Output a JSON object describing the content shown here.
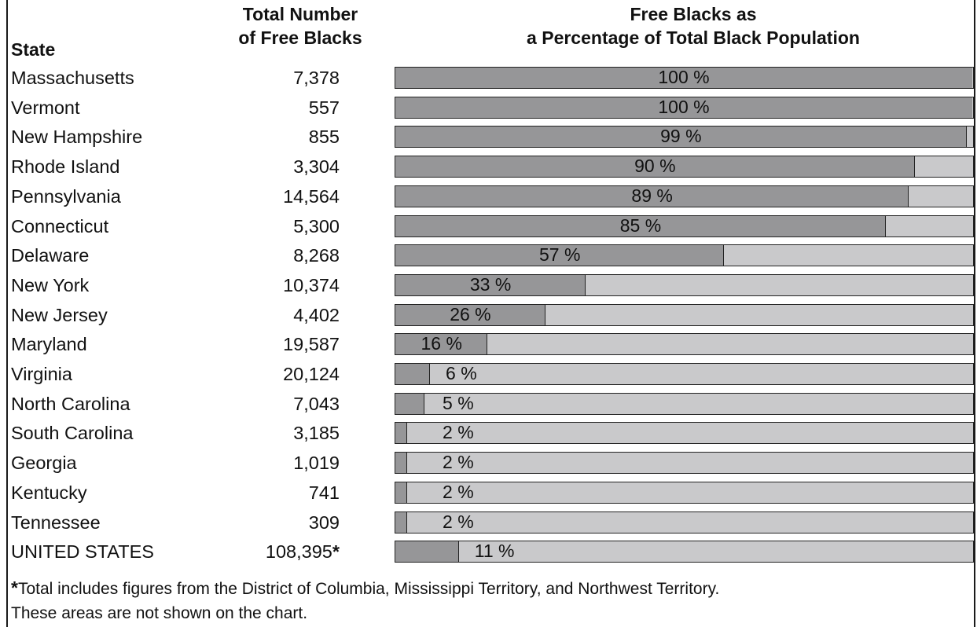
{
  "headers": {
    "state": "State",
    "total_line1": "Total Number",
    "total_line2": "of Free Blacks",
    "pct_line1": "Free Blacks as",
    "pct_line2": "a Percentage of Total Black Population"
  },
  "chart_data": {
    "type": "bar",
    "orientation": "horizontal",
    "xlim": [
      0,
      100
    ],
    "unit": "%",
    "rows": [
      {
        "state": "Massachusetts",
        "count": "7,378",
        "pct": 100
      },
      {
        "state": "Vermont",
        "count": "557",
        "pct": 100
      },
      {
        "state": "New Hampshire",
        "count": "855",
        "pct": 99
      },
      {
        "state": "Rhode Island",
        "count": "3,304",
        "pct": 90
      },
      {
        "state": "Pennsylvania",
        "count": "14,564",
        "pct": 89
      },
      {
        "state": "Connecticut",
        "count": "5,300",
        "pct": 85
      },
      {
        "state": "Delaware",
        "count": "8,268",
        "pct": 57
      },
      {
        "state": "New York",
        "count": "10,374",
        "pct": 33
      },
      {
        "state": "New Jersey",
        "count": "4,402",
        "pct": 26
      },
      {
        "state": "Maryland",
        "count": "19,587",
        "pct": 16
      },
      {
        "state": "Virginia",
        "count": "20,124",
        "pct": 6
      },
      {
        "state": "North Carolina",
        "count": "7,043",
        "pct": 5
      },
      {
        "state": "South Carolina",
        "count": "3,185",
        "pct": 2
      },
      {
        "state": "Georgia",
        "count": "1,019",
        "pct": 2
      },
      {
        "state": "Kentucky",
        "count": "741",
        "pct": 2
      },
      {
        "state": "Tennessee",
        "count": "309",
        "pct": 2
      },
      {
        "state": "UNITED STATES",
        "count": "108,395",
        "count_mark": "*",
        "pct": 11
      }
    ],
    "colors": {
      "fill": "#969698",
      "remainder": "#c9c9cb",
      "border": "#222222"
    }
  },
  "footnote": {
    "mark": "*",
    "line1": "Total includes figures from the District of Columbia, Mississippi Territory, and Northwest Territory.",
    "line2": "These areas are not shown on the chart."
  }
}
